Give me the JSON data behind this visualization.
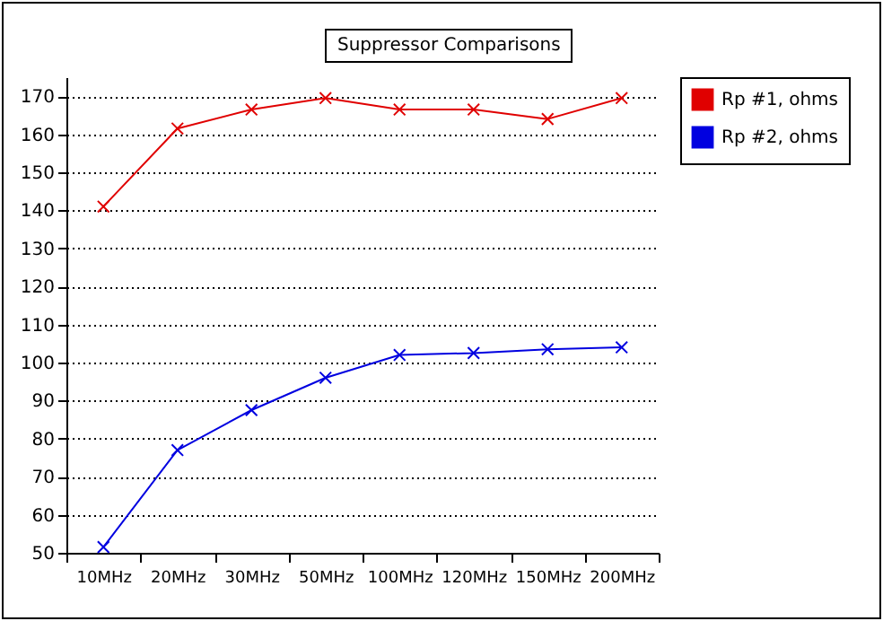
{
  "chart_data": {
    "type": "line",
    "title": "Suppressor Comparisons",
    "categories": [
      "10MHz",
      "20MHz",
      "30MHz",
      "50MHz",
      "100MHz",
      "120MHz",
      "150MHz",
      "200MHz"
    ],
    "series": [
      {
        "name": "Rp #1, ohms",
        "color": "#e00000",
        "values": [
          141,
          161.5,
          166.5,
          169.5,
          166.5,
          166.5,
          164,
          169.5
        ]
      },
      {
        "name": "Rp #2, ohms",
        "color": "#0000e0",
        "values": [
          51.5,
          77,
          87.5,
          96,
          102,
          102.5,
          103.5,
          104
        ]
      }
    ],
    "ylim": [
      50,
      175
    ],
    "yticks": [
      50,
      60,
      70,
      80,
      90,
      100,
      110,
      120,
      130,
      140,
      150,
      160,
      170
    ],
    "grid": "y",
    "legend": "top right",
    "marker": "cross",
    "line_style": "solid"
  }
}
